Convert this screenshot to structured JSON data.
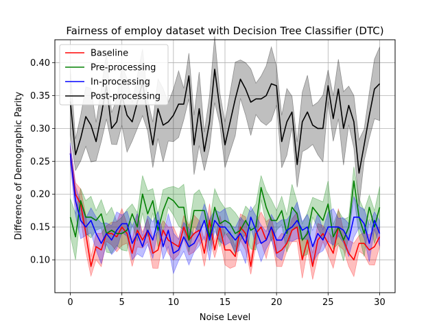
{
  "chart_data": {
    "type": "line",
    "title": "Fairness of employ dataset with Decision Tree Classifier (DTC)",
    "xlabel": "Noise Level",
    "ylabel": "Difference of Demographic Parity",
    "xlim": [
      -1.5,
      31.5
    ],
    "ylim": [
      0.05,
      0.435
    ],
    "xticks": [
      0,
      5,
      10,
      15,
      20,
      25,
      30
    ],
    "yticks": [
      0.1,
      0.15,
      0.2,
      0.25,
      0.3,
      0.35,
      0.4
    ],
    "ytick_labels": [
      "0.10",
      "0.15",
      "0.20",
      "0.25",
      "0.30",
      "0.35",
      "0.40"
    ],
    "grid": true,
    "legend_position": "top-left",
    "x": [
      0,
      0.5,
      1,
      1.5,
      2,
      2.5,
      3,
      3.5,
      4,
      4.5,
      5,
      5.5,
      6,
      6.5,
      7,
      7.5,
      8,
      8.5,
      9,
      9.5,
      10,
      10.5,
      11,
      11.5,
      12,
      12.5,
      13,
      13.5,
      14,
      14.5,
      15,
      15.5,
      16,
      16.5,
      17,
      17.5,
      18,
      18.5,
      19,
      19.5,
      20,
      20.5,
      21,
      21.5,
      22,
      22.5,
      23,
      23.5,
      24,
      24.5,
      25,
      25.5,
      26,
      26.5,
      27,
      27.5,
      28,
      28.5,
      29,
      29.5,
      30
    ],
    "series": [
      {
        "name": "Baseline",
        "color": "#ff0000",
        "values": [
          0.262,
          0.2,
          0.185,
          0.14,
          0.09,
          0.12,
          0.115,
          0.14,
          0.14,
          0.135,
          0.15,
          0.14,
          0.11,
          0.145,
          0.13,
          0.145,
          0.11,
          0.115,
          0.145,
          0.13,
          0.125,
          0.12,
          0.15,
          0.13,
          0.14,
          0.145,
          0.11,
          0.16,
          0.115,
          0.15,
          0.115,
          0.115,
          0.105,
          0.15,
          0.14,
          0.09,
          0.14,
          0.15,
          0.13,
          0.15,
          0.11,
          0.115,
          0.125,
          0.145,
          0.15,
          0.1,
          0.13,
          0.09,
          0.13,
          0.14,
          0.125,
          0.11,
          0.15,
          0.13,
          0.11,
          0.1,
          0.125,
          0.125,
          0.115,
          0.12,
          0.135
        ],
        "band": 0.02
      },
      {
        "name": "Pre-processing",
        "color": "#008000",
        "values": [
          0.165,
          0.135,
          0.19,
          0.165,
          0.165,
          0.16,
          0.17,
          0.14,
          0.145,
          0.14,
          0.14,
          0.145,
          0.17,
          0.15,
          0.2,
          0.17,
          0.19,
          0.145,
          0.175,
          0.195,
          0.19,
          0.18,
          0.18,
          0.13,
          0.175,
          0.175,
          0.175,
          0.135,
          0.18,
          0.155,
          0.16,
          0.155,
          0.14,
          0.145,
          0.16,
          0.145,
          0.15,
          0.21,
          0.18,
          0.16,
          0.16,
          0.175,
          0.14,
          0.18,
          0.17,
          0.13,
          0.14,
          0.18,
          0.17,
          0.16,
          0.185,
          0.135,
          0.15,
          0.13,
          0.15,
          0.22,
          0.165,
          0.14,
          0.18,
          0.15,
          0.18
        ],
        "band": 0.025
      },
      {
        "name": "In-processing",
        "color": "#0000ff",
        "values": [
          0.262,
          0.19,
          0.16,
          0.15,
          0.16,
          0.14,
          0.125,
          0.14,
          0.13,
          0.145,
          0.155,
          0.155,
          0.125,
          0.14,
          0.12,
          0.145,
          0.13,
          0.16,
          0.12,
          0.145,
          0.11,
          0.115,
          0.135,
          0.12,
          0.125,
          0.14,
          0.16,
          0.13,
          0.16,
          0.15,
          0.15,
          0.14,
          0.13,
          0.14,
          0.125,
          0.165,
          0.145,
          0.125,
          0.13,
          0.15,
          0.13,
          0.13,
          0.145,
          0.15,
          0.16,
          0.145,
          0.15,
          0.12,
          0.14,
          0.13,
          0.15,
          0.15,
          0.15,
          0.145,
          0.13,
          0.165,
          0.165,
          0.155,
          0.125,
          0.16,
          0.14
        ],
        "band": 0.022
      },
      {
        "name": "Post-processing",
        "color": "#000000",
        "values": [
          0.341,
          0.26,
          0.285,
          0.318,
          0.305,
          0.28,
          0.32,
          0.365,
          0.3,
          0.31,
          0.35,
          0.32,
          0.31,
          0.34,
          0.37,
          0.32,
          0.275,
          0.33,
          0.305,
          0.31,
          0.32,
          0.337,
          0.337,
          0.38,
          0.275,
          0.33,
          0.265,
          0.31,
          0.39,
          0.33,
          0.275,
          0.31,
          0.345,
          0.375,
          0.36,
          0.34,
          0.345,
          0.345,
          0.35,
          0.368,
          0.365,
          0.28,
          0.31,
          0.325,
          0.245,
          0.31,
          0.325,
          0.305,
          0.3,
          0.3,
          0.365,
          0.315,
          0.36,
          0.3,
          0.335,
          0.31,
          0.232,
          0.275,
          0.32,
          0.36,
          0.368
        ],
        "band": 0.04
      }
    ]
  }
}
